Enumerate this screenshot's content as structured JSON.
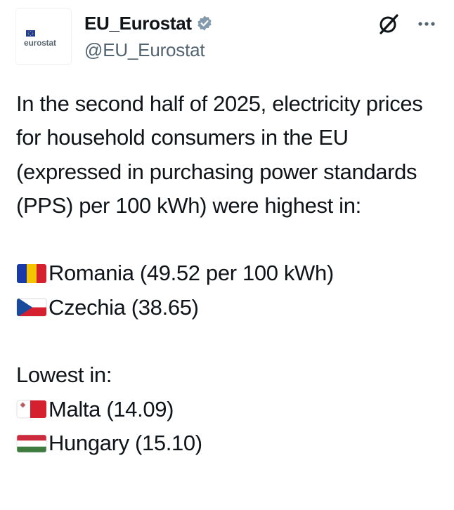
{
  "author": {
    "display_name": "EU_Eurostat",
    "handle": "@EU_Eurostat",
    "avatar_text": "eurostat",
    "verified_icon": "verified-badge-icon",
    "verified_color": "#829aab"
  },
  "actions": {
    "grok_icon": "grok-icon",
    "more_icon": "more-options-icon"
  },
  "tweet": {
    "intro": "In the second half of 2025, electricity prices for household consumers in the EU (expressed in purchasing power standards (PPS) per 100 kWh) were highest in:",
    "highest": [
      {
        "flag": "romania-flag-icon",
        "text": "Romania (49.52 per 100 kWh)"
      },
      {
        "flag": "czechia-flag-icon",
        "text": "Czechia (38.65)"
      }
    ],
    "lowest_label": "Lowest in:",
    "lowest": [
      {
        "flag": "malta-flag-icon",
        "text": "Malta (14.09)"
      },
      {
        "flag": "hungary-flag-icon",
        "text": "Hungary (15.10)"
      }
    ]
  },
  "colors": {
    "text": "#0f1419",
    "secondary_text": "#536471"
  }
}
